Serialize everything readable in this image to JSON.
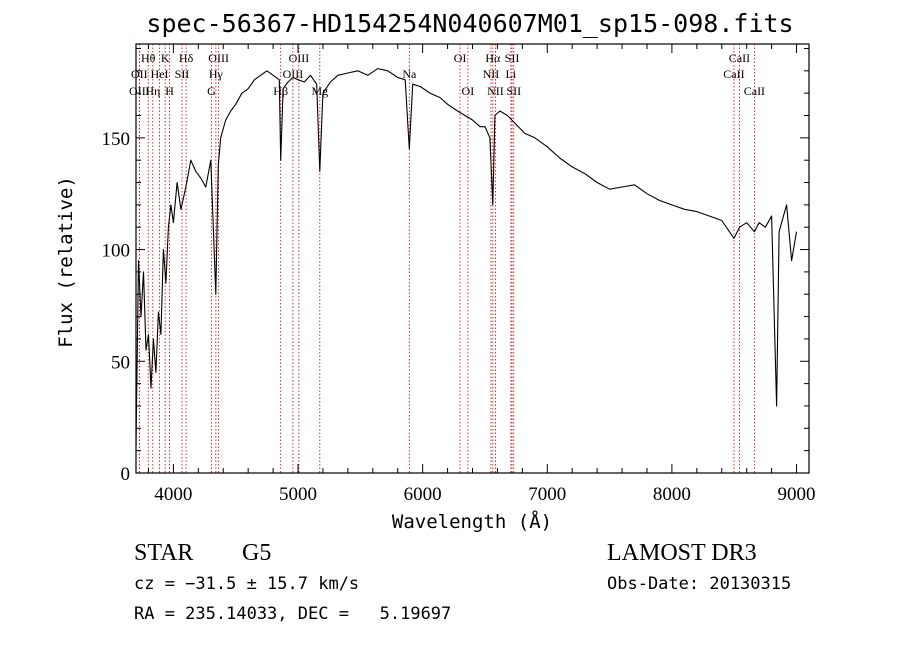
{
  "chart_data": {
    "type": "line",
    "title": "spec-56367-HD154254N040607M01_sp15-098.fits",
    "xlabel": "Wavelength (Å)",
    "ylabel": "Flux (relative)",
    "xlim": [
      3700,
      9100
    ],
    "ylim": [
      0,
      192
    ],
    "xticks": [
      4000,
      5000,
      6000,
      7000,
      8000,
      9000
    ],
    "yticks": [
      0,
      50,
      100,
      150
    ],
    "series": [
      {
        "name": "spectrum",
        "x": [
          3700,
          3720,
          3740,
          3760,
          3780,
          3800,
          3820,
          3840,
          3860,
          3880,
          3900,
          3920,
          3940,
          3960,
          3980,
          4000,
          4030,
          4060,
          4100,
          4140,
          4180,
          4220,
          4260,
          4300,
          4320,
          4340,
          4360,
          4380,
          4420,
          4460,
          4500,
          4550,
          4600,
          4650,
          4700,
          4750,
          4800,
          4850,
          4861,
          4880,
          4920,
          4960,
          5000,
          5050,
          5100,
          5150,
          5175,
          5200,
          5260,
          5320,
          5400,
          5480,
          5560,
          5640,
          5720,
          5800,
          5860,
          5893,
          5920,
          5980,
          6060,
          6140,
          6200,
          6280,
          6340,
          6400,
          6460,
          6500,
          6540,
          6563,
          6580,
          6620,
          6680,
          6750,
          6820,
          6900,
          7000,
          7100,
          7200,
          7300,
          7400,
          7500,
          7600,
          7700,
          7800,
          7900,
          8000,
          8100,
          8200,
          8300,
          8400,
          8498,
          8542,
          8600,
          8662,
          8700,
          8750,
          8800,
          8840,
          8860,
          8880,
          8920,
          8960,
          9000
        ],
        "values": [
          12,
          95,
          70,
          90,
          55,
          62,
          38,
          60,
          45,
          72,
          62,
          100,
          85,
          110,
          120,
          112,
          130,
          118,
          128,
          140,
          135,
          132,
          128,
          140,
          110,
          80,
          138,
          150,
          158,
          162,
          165,
          170,
          172,
          176,
          178,
          180,
          178,
          176,
          140,
          172,
          175,
          177,
          176,
          175,
          178,
          174,
          135,
          170,
          175,
          178,
          179,
          180,
          178,
          181,
          180,
          177,
          176,
          145,
          174,
          173,
          170,
          168,
          165,
          162,
          160,
          158,
          155,
          155,
          150,
          120,
          160,
          162,
          160,
          156,
          152,
          150,
          146,
          141,
          137,
          134,
          130,
          127,
          128,
          129,
          125,
          122,
          120,
          118,
          117,
          115,
          113,
          105,
          110,
          112,
          108,
          112,
          110,
          115,
          30,
          108,
          112,
          120,
          95,
          108
        ]
      }
    ],
    "line_markers": [
      {
        "label": "Hθ",
        "x": 3798,
        "row": 1
      },
      {
        "label": "OII",
        "x": 3727,
        "row": 2
      },
      {
        "label": "OIII",
        "x": 3727,
        "row": 3
      },
      {
        "label": "K",
        "x": 3934,
        "row": 1
      },
      {
        "label": "HeI",
        "x": 3889,
        "row": 2
      },
      {
        "label": "Hη",
        "x": 3835,
        "row": 3
      },
      {
        "label": "SII",
        "x": 4069,
        "row": 2
      },
      {
        "label": "H",
        "x": 3969,
        "row": 3
      },
      {
        "label": "Hδ",
        "x": 4102,
        "row": 1
      },
      {
        "label": "OIII",
        "x": 4363,
        "row": 1
      },
      {
        "label": "Hγ",
        "x": 4341,
        "row": 2
      },
      {
        "label": "G",
        "x": 4305,
        "row": 3
      },
      {
        "label": "OIII",
        "x": 5007,
        "row": 1
      },
      {
        "label": "OIII",
        "x": 4959,
        "row": 2
      },
      {
        "label": "Hβ",
        "x": 4861,
        "row": 3
      },
      {
        "label": "Mg",
        "x": 5175,
        "row": 3
      },
      {
        "label": "Na",
        "x": 5893,
        "row": 2
      },
      {
        "label": "OI",
        "x": 6300,
        "row": 1
      },
      {
        "label": "OI",
        "x": 6363,
        "row": 3
      },
      {
        "label": "Hα",
        "x": 6563,
        "row": 1
      },
      {
        "label": "SII",
        "x": 6717,
        "row": 1
      },
      {
        "label": "NII",
        "x": 6548,
        "row": 2
      },
      {
        "label": "Li",
        "x": 6708,
        "row": 2
      },
      {
        "label": "NII",
        "x": 6584,
        "row": 3
      },
      {
        "label": "SII",
        "x": 6731,
        "row": 3
      },
      {
        "label": "CaII",
        "x": 8542,
        "row": 1
      },
      {
        "label": "CaII",
        "x": 8498,
        "row": 2
      },
      {
        "label": "CaII",
        "x": 8662,
        "row": 3
      }
    ]
  },
  "info": {
    "class": "STAR",
    "subclass": "G5",
    "survey": "LAMOST DR3",
    "cz": "cz = −31.5 ± 15.7 km/s",
    "obs_date": "Obs-Date: 20130315",
    "coords": "RA = 235.14033, DEC =   5.19697"
  }
}
